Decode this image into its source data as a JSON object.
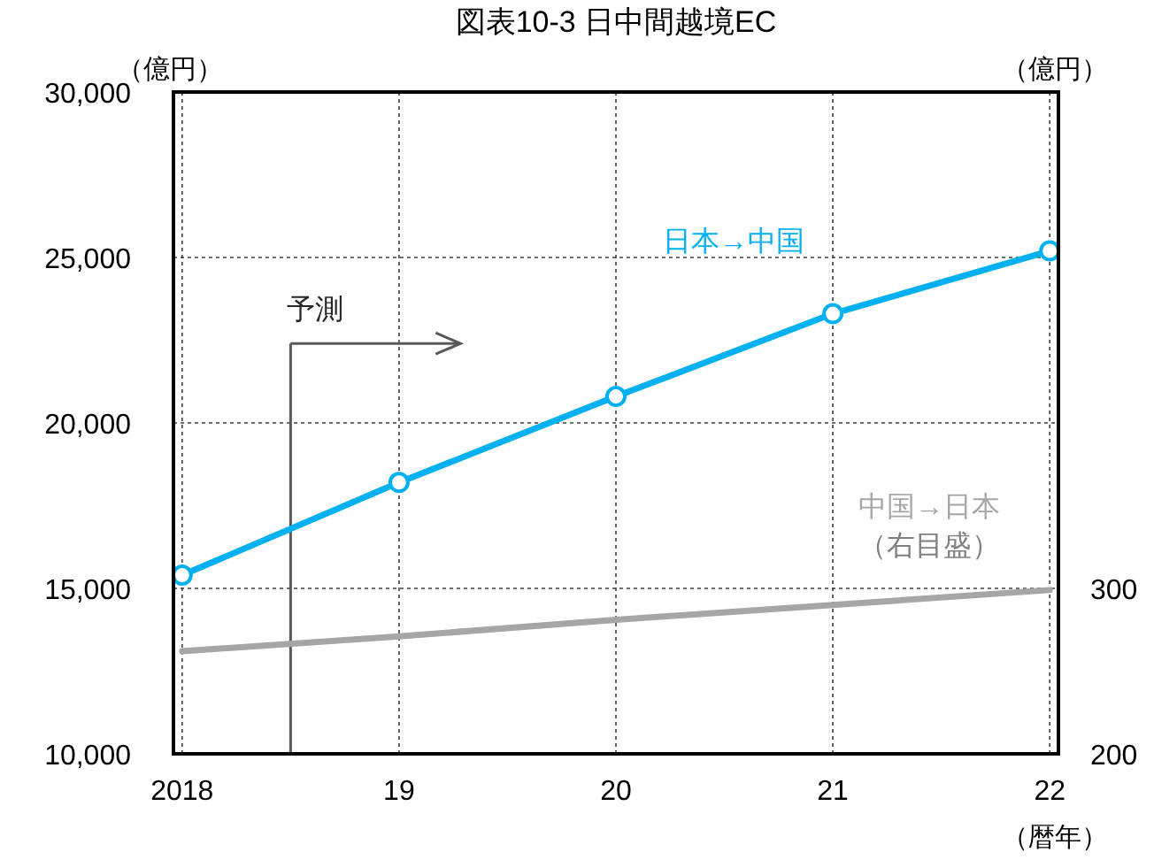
{
  "chart_data": {
    "type": "line",
    "title": "図表10-3 日中間越境EC",
    "ylabel": "（億円）",
    "y2label": "（億円）",
    "xlabel": "（暦年）",
    "x": [
      2018,
      2019,
      2020,
      2021,
      2022
    ],
    "xlim": [
      2017.96,
      2022.04
    ],
    "xticks": [
      {
        "value": 2018,
        "label": "2018"
      },
      {
        "value": 2019,
        "label": "19"
      },
      {
        "value": 2020,
        "label": "20"
      },
      {
        "value": 2021,
        "label": "21"
      },
      {
        "value": 2022,
        "label": "22"
      }
    ],
    "ylim": [
      10000,
      30000
    ],
    "yticks": [
      {
        "value": 10000,
        "label": "10,000"
      },
      {
        "value": 15000,
        "label": "15,000"
      },
      {
        "value": 20000,
        "label": "20,000"
      },
      {
        "value": 25000,
        "label": "25,000"
      },
      {
        "value": 30000,
        "label": "30,000"
      }
    ],
    "y2lim": [
      200,
      600
    ],
    "y2ticks": [
      200,
      300
    ],
    "grid": true,
    "line_style": "solid",
    "series": [
      {
        "name": "日本→中国",
        "color": "#00b0f0",
        "marker": "circle",
        "values": [
          15400,
          18200,
          20800,
          23300,
          25200
        ]
      },
      {
        "name": "中国→日本",
        "color": "#a6a6a6",
        "marker": "none",
        "axis": "y2",
        "values": [
          262,
          271,
          281,
          290,
          299
        ]
      }
    ],
    "ref_lines": [
      {
        "axis": "x",
        "value": 2018.5,
        "label": "予測",
        "color": "#595959"
      }
    ],
    "annotations": [
      "（右目盛）"
    ]
  }
}
